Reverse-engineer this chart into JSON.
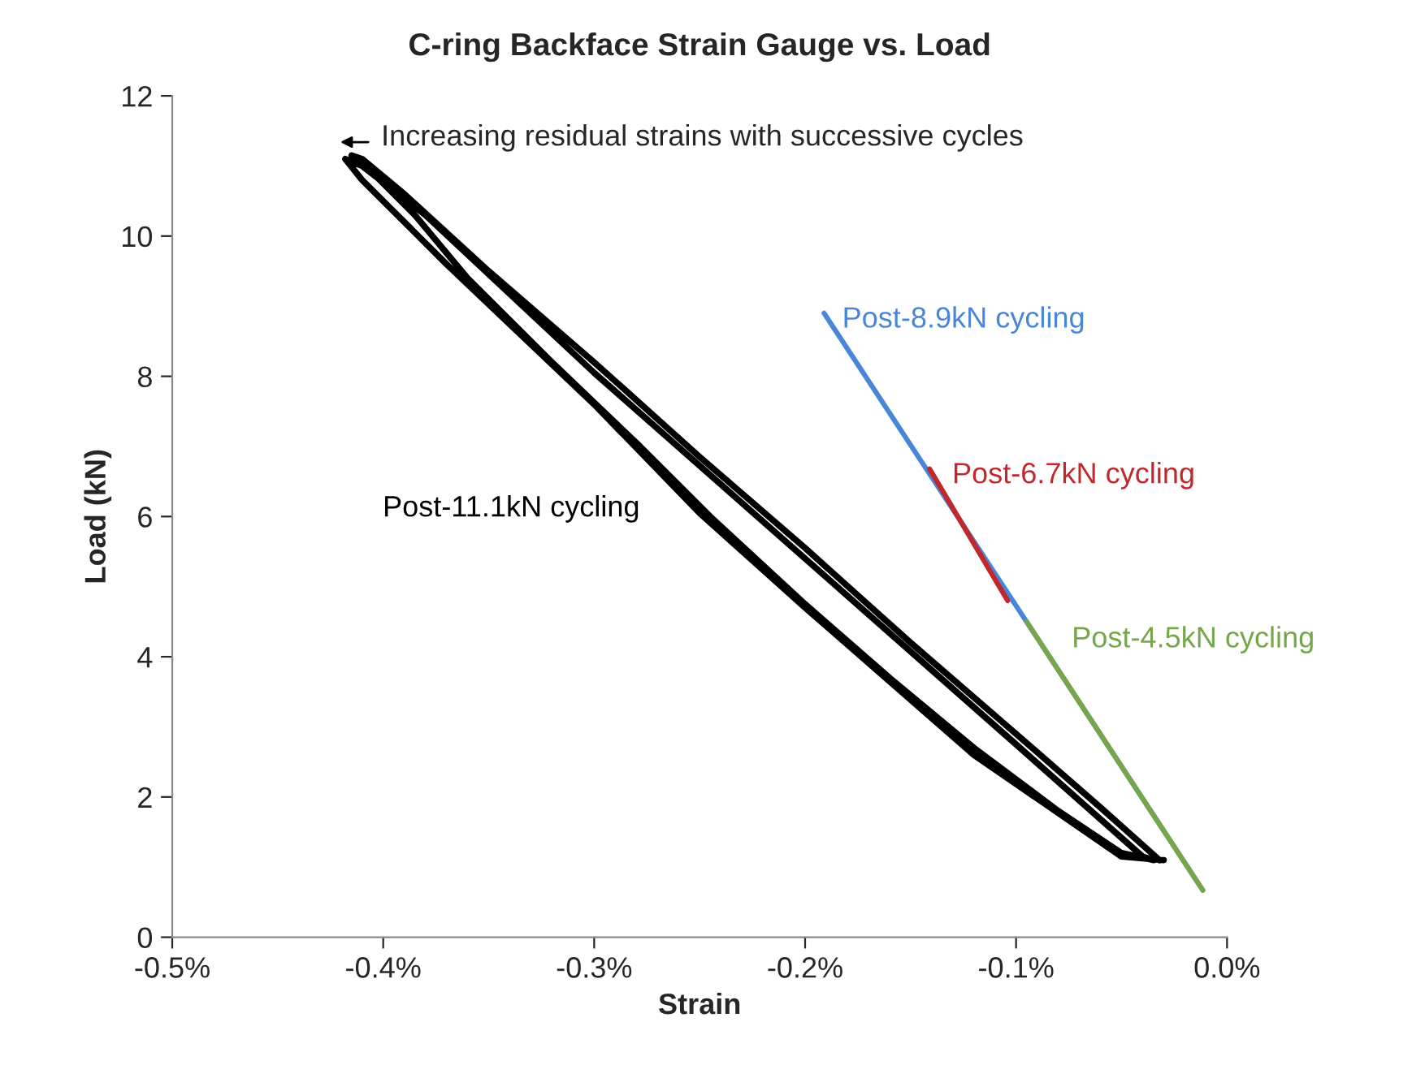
{
  "chart_data": {
    "type": "line",
    "title": "C-ring Backface Strain Gauge vs. Load",
    "xlabel": "Strain",
    "ylabel": "Load (kN)",
    "xlim": [
      -0.5,
      0.0
    ],
    "xticks": [
      {
        "value": -0.5,
        "label": "-0.5%"
      },
      {
        "value": -0.4,
        "label": "-0.4%"
      },
      {
        "value": -0.3,
        "label": "-0.3%"
      },
      {
        "value": -0.2,
        "label": "-0.2%"
      },
      {
        "value": -0.1,
        "label": "-0.1%"
      },
      {
        "value": 0.0,
        "label": "0.0%"
      }
    ],
    "ylim": [
      0,
      12
    ],
    "yticks": [
      0,
      2,
      4,
      6,
      8,
      10,
      12
    ],
    "grid": false,
    "legend": false,
    "marker": "none",
    "line_style": "solid",
    "series": [
      {
        "name": "Post-11.1kN cycling",
        "color": "#000000",
        "x": [
          -0.032,
          -0.06,
          -0.1,
          -0.15,
          -0.2,
          -0.25,
          -0.3,
          -0.35,
          -0.39,
          -0.41,
          -0.415,
          -0.405,
          -0.385,
          -0.36,
          -0.32,
          -0.28,
          -0.245,
          -0.2,
          -0.16,
          -0.12,
          -0.08,
          -0.05,
          -0.035,
          -0.04,
          -0.1,
          -0.2,
          -0.3,
          -0.38,
          -0.41,
          -0.418,
          -0.41,
          -0.37,
          -0.3,
          -0.25,
          -0.2,
          -0.12,
          -0.05,
          -0.03
        ],
        "values": [
          1.1,
          1.85,
          2.9,
          4.2,
          5.55,
          6.85,
          8.2,
          9.5,
          10.6,
          11.1,
          11.15,
          10.9,
          10.3,
          9.4,
          8.2,
          7.05,
          6.0,
          4.75,
          3.7,
          2.7,
          1.8,
          1.2,
          1.1,
          1.15,
          2.75,
          5.4,
          8.05,
          10.3,
          11.0,
          11.1,
          10.8,
          9.6,
          7.6,
          6.05,
          4.7,
          2.6,
          1.15,
          1.1
        ]
      },
      {
        "name": "Post-8.9kN cycling",
        "color": "#4a86d8",
        "x": [
          -0.191,
          -0.0115
        ],
        "values": [
          8.9,
          0.67
        ]
      },
      {
        "name": "Post-6.7kN cycling",
        "color": "#c0282d",
        "x": [
          -0.141,
          -0.104
        ],
        "values": [
          6.68,
          4.8
        ]
      },
      {
        "name": "Post-4.5kN cycling",
        "color": "#76a64a",
        "x": [
          -0.095,
          -0.0115
        ],
        "values": [
          4.5,
          0.67
        ]
      }
    ],
    "annotations": [
      "Increasing residual strains with successive cycles"
    ]
  }
}
